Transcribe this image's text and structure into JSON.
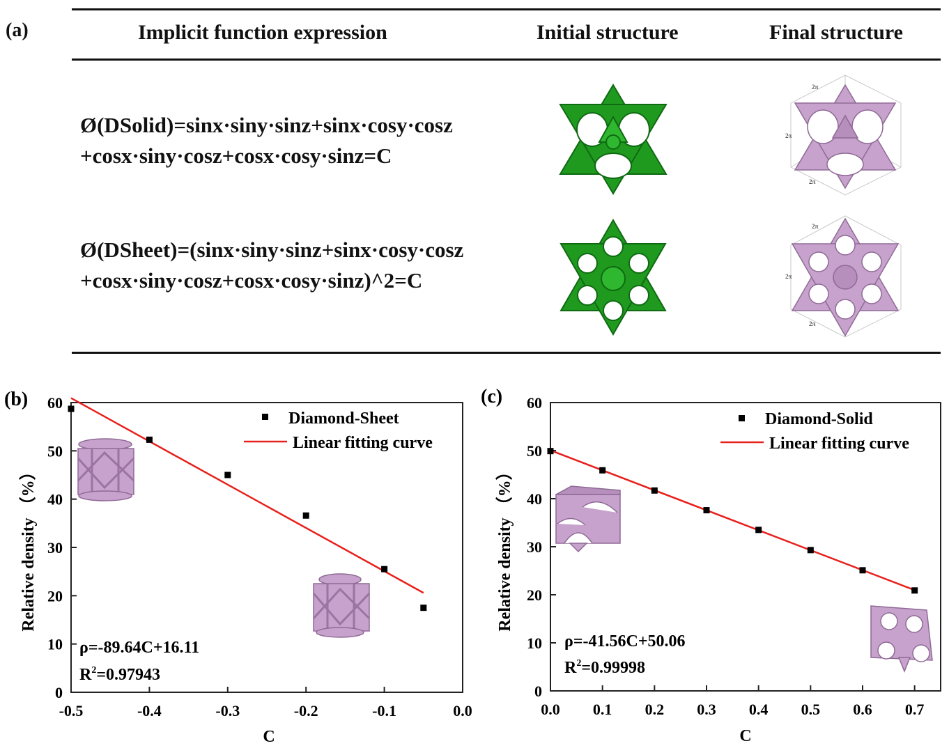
{
  "panel_a": {
    "label": "(a)",
    "headers": {
      "expression": "Implicit function expression",
      "initial": "Initial structure",
      "final": "Final structure"
    },
    "rows": [
      {
        "line1": "Ø(DSolid)=sinx·siny·sinz+sinx·cosy·cosz",
        "line2": "+cosx·siny·cosz+cosx·cosy·sinz=C",
        "box_labels": [
          "2π",
          "2π",
          "2π"
        ]
      },
      {
        "line1": "Ø(DSheet)=(sinx·siny·sinz+sinx·cosy·cosz",
        "line2": "+cosx·siny·cosz+cosx·cosy·sinz)^2=C",
        "box_labels": [
          "2π",
          "2π",
          "2π"
        ]
      }
    ],
    "colors": {
      "initial": "#1f9a1f",
      "final": "#c6a2cc"
    }
  },
  "chart_data": [
    {
      "panel_label": "(b)",
      "type": "scatter",
      "title": "",
      "xlabel": "C",
      "ylabel": "Relative density （%）",
      "xlim": [
        -0.5,
        0.0
      ],
      "ylim": [
        0,
        60
      ],
      "xticks": [
        "-0.5",
        "-0.4",
        "-0.3",
        "-0.2",
        "-0.1",
        "0.0"
      ],
      "yticks": [
        "0",
        "10",
        "20",
        "30",
        "40",
        "50",
        "60"
      ],
      "series": [
        {
          "name": "Diamond-Sheet",
          "x": [
            -0.5,
            -0.4,
            -0.3,
            -0.2,
            -0.1,
            -0.05
          ],
          "y": [
            58.7,
            52.3,
            45.0,
            36.6,
            25.5,
            17.5
          ]
        }
      ],
      "fit": {
        "name": "Linear fitting curve",
        "slope": -89.64,
        "intercept": 16.11,
        "x_range": [
          -0.5,
          -0.05
        ]
      },
      "annotation_line1": "ρ=-89.64C+16.11",
      "annotation_line2_prefix": "R",
      "annotation_line2_sup": "2",
      "annotation_line2_value": "=0.97943",
      "legend_position": "top-right",
      "colors": {
        "points": "#000000",
        "fit": "#e8201c",
        "inset": "#c6a2cc"
      }
    },
    {
      "panel_label": "(c)",
      "type": "scatter",
      "title": "",
      "xlabel": "C",
      "ylabel": "Relative density （%）",
      "xlim": [
        0.0,
        0.75
      ],
      "ylim": [
        0,
        60
      ],
      "xticks": [
        "0.0",
        "0.1",
        "0.2",
        "0.3",
        "0.4",
        "0.5",
        "0.6",
        "0.7"
      ],
      "yticks": [
        "0",
        "10",
        "20",
        "30",
        "40",
        "50",
        "60"
      ],
      "series": [
        {
          "name": "Diamond-Solid",
          "x": [
            0.0,
            0.1,
            0.2,
            0.3,
            0.4,
            0.5,
            0.6,
            0.7
          ],
          "y": [
            49.9,
            45.9,
            41.7,
            37.6,
            33.5,
            29.3,
            25.1,
            20.9
          ]
        }
      ],
      "fit": {
        "name": "Linear fitting curve",
        "slope": -41.56,
        "intercept": 50.06,
        "x_range": [
          0.0,
          0.7
        ]
      },
      "annotation_line1": "ρ=-41.56C+50.06",
      "annotation_line2_prefix": "R",
      "annotation_line2_sup": "2",
      "annotation_line2_value": "=0.99998",
      "legend_position": "top-right",
      "colors": {
        "points": "#000000",
        "fit": "#e8201c",
        "inset": "#c6a2cc"
      }
    }
  ]
}
